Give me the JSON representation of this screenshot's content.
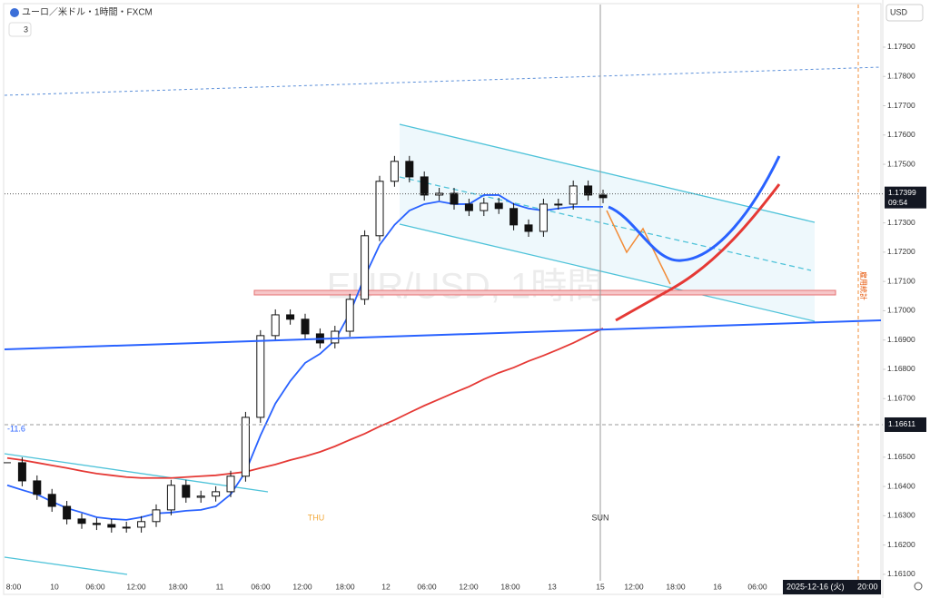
{
  "header": {
    "symbol": "ユーロ／米ドル・1時間・FXCM",
    "indicator_count": 3
  },
  "currency": "USD",
  "watermark": "EUR/USD, 1時間",
  "chart_data": {
    "type": "candlestick",
    "series": [
      {
        "color": "#111111",
        "values": [
          1.16481,
          1.16419,
          1.16373,
          1.16332,
          1.16289,
          1.16274,
          1.1627,
          1.16261,
          1.16261,
          1.1628,
          1.1632,
          1.16404,
          1.16363,
          1.16367,
          1.16382,
          1.16435,
          1.16636,
          1.16915,
          1.16986,
          1.16971,
          1.16921,
          1.1689,
          1.1693,
          1.17039,
          1.17256,
          1.17442,
          1.1751,
          1.17457,
          1.17395,
          1.17401,
          1.17364,
          1.17342,
          1.17367,
          1.17349,
          1.17293,
          1.17271,
          1.17364,
          1.17364,
          1.17426,
          1.17395,
          1.17386
        ]
      },
      {
        "color": "#2962ff",
        "values": [
          1.16404,
          1.16388,
          1.16373,
          1.16348,
          1.16326,
          1.16311,
          1.16295,
          1.16289,
          1.16286,
          1.16295,
          1.16308,
          1.16311,
          1.16317,
          1.1632,
          1.16332,
          1.16373,
          1.1645,
          1.16574,
          1.16683,
          1.1676,
          1.16822,
          1.16853,
          1.16899,
          1.16992,
          1.17116,
          1.17225,
          1.17293,
          1.17342,
          1.17364,
          1.17373,
          1.17364,
          1.17364,
          1.17395,
          1.17395,
          1.17364,
          1.17349,
          1.17342,
          1.17349,
          1.17355,
          1.17355,
          1.17355
        ]
      },
      {
        "color": "#e53935",
        "values": [
          1.16497,
          1.1649,
          1.16481,
          1.16472,
          1.16463,
          1.16453,
          1.16444,
          1.16438,
          1.16432,
          1.16429,
          1.16429,
          1.16429,
          1.16432,
          1.16435,
          1.16438,
          1.16444,
          1.1645,
          1.16463,
          1.16475,
          1.1649,
          1.16503,
          1.16518,
          1.16537,
          1.16559,
          1.1658,
          1.16605,
          1.16627,
          1.16652,
          1.16676,
          1.16698,
          1.1672,
          1.16741,
          1.16766,
          1.16788,
          1.16806,
          1.16828,
          1.16847,
          1.16868,
          1.1689,
          1.16915,
          1.1694
        ]
      }
    ],
    "ylim": [
      1.16078,
      1.18061
    ],
    "yticks": [
      {
        "value": 1.161,
        "label": "1.16100"
      },
      {
        "value": 1.162,
        "label": "1.16200"
      },
      {
        "value": 1.163,
        "label": "1.16300"
      },
      {
        "value": 1.164,
        "label": "1.16400"
      },
      {
        "value": 1.165,
        "label": "1.16500"
      },
      {
        "value": 1.167,
        "label": "1.16700"
      },
      {
        "value": 1.168,
        "label": "1.16800"
      },
      {
        "value": 1.169,
        "label": "1.16900"
      },
      {
        "value": 1.17,
        "label": "1.17000"
      },
      {
        "value": 1.171,
        "label": "1.17100"
      },
      {
        "value": 1.172,
        "label": "1.17200"
      },
      {
        "value": 1.173,
        "label": "1.17300"
      },
      {
        "value": 1.175,
        "label": "1.17500"
      },
      {
        "value": 1.176,
        "label": "1.17600"
      },
      {
        "value": 1.177,
        "label": "1.17700"
      },
      {
        "value": 1.178,
        "label": "1.17800"
      },
      {
        "value": 1.179,
        "label": "1.17900"
      }
    ],
    "x_labels": [
      "8:00",
      "10",
      "06:00",
      "12:00",
      "18:00",
      "11",
      "06:00",
      "12:00",
      "18:00",
      "12",
      "06:00",
      "12:00",
      "18:00",
      "13",
      "15",
      "12:00",
      "18:00",
      "16",
      "06:00"
    ],
    "current_price": 1.17399,
    "countdown": "09:54",
    "crosshair_price": 1.16611,
    "indicator_value": -11.6,
    "day_markers": [
      "THU",
      "SUN"
    ],
    "crosshair_time": [
      "2025-12-16 (火)",
      "20:00"
    ],
    "event_label": "雇用統計"
  }
}
